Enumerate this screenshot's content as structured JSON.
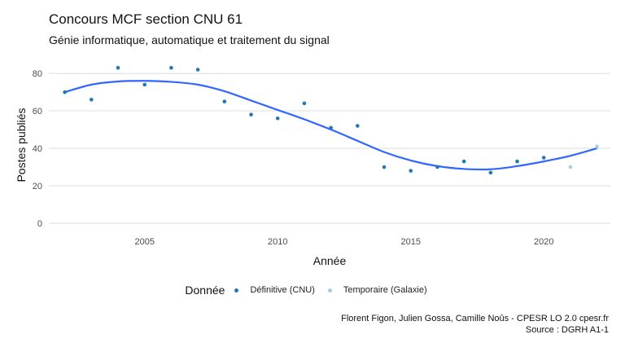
{
  "header": {
    "title": "Concours MCF section CNU 61",
    "subtitle": "Génie informatique, automatique et traitement du signal"
  },
  "chart_data": {
    "type": "scatter",
    "xlabel": "Année",
    "ylabel": "Postes publiés",
    "xlim": [
      2001.4,
      2022.5
    ],
    "ylim": [
      -3.5,
      87
    ],
    "x_ticks": [
      2005,
      2010,
      2015,
      2020
    ],
    "y_ticks": [
      0,
      20,
      40,
      60,
      80
    ],
    "grid": "horizontal",
    "legend_position": "bottom",
    "legend_title": "Donnée",
    "series": [
      {
        "name": "Définitive (CNU)",
        "color": "#1f78b4",
        "points": [
          [
            2002,
            70
          ],
          [
            2003,
            66
          ],
          [
            2004,
            83
          ],
          [
            2005,
            74
          ],
          [
            2006,
            83
          ],
          [
            2007,
            82
          ],
          [
            2008,
            65
          ],
          [
            2009,
            58
          ],
          [
            2010,
            56
          ],
          [
            2011,
            64
          ],
          [
            2012,
            51
          ],
          [
            2013,
            52
          ],
          [
            2014,
            30
          ],
          [
            2015,
            28
          ],
          [
            2016,
            30
          ],
          [
            2017,
            33
          ],
          [
            2018,
            27
          ],
          [
            2019,
            33
          ],
          [
            2020,
            35
          ]
        ]
      },
      {
        "name": "Temporaire (Galaxie)",
        "color": "#a6cee3",
        "points": [
          [
            2021,
            30
          ],
          [
            2022,
            41
          ]
        ]
      }
    ],
    "trend": {
      "color": "#3366ff",
      "points": [
        [
          2002,
          70
        ],
        [
          2003,
          74
        ],
        [
          2004,
          75.7
        ],
        [
          2005,
          76
        ],
        [
          2006,
          75.5
        ],
        [
          2007,
          74
        ],
        [
          2008,
          70.5
        ],
        [
          2009,
          65.5
        ],
        [
          2010,
          60.5
        ],
        [
          2011,
          55.5
        ],
        [
          2012,
          50
        ],
        [
          2013,
          44
        ],
        [
          2014,
          38
        ],
        [
          2015,
          33.5
        ],
        [
          2016,
          30.5
        ],
        [
          2017,
          29
        ],
        [
          2018,
          28.8
        ],
        [
          2019,
          30.5
        ],
        [
          2020,
          33
        ],
        [
          2021,
          36
        ],
        [
          2022,
          40
        ]
      ]
    }
  },
  "caption": {
    "line1": "Florent Figon, Julien Gossa, Camille Noûs - CPESR LO 2.0 cpesr.fr",
    "line2": "Source : DGRH A1-1"
  }
}
